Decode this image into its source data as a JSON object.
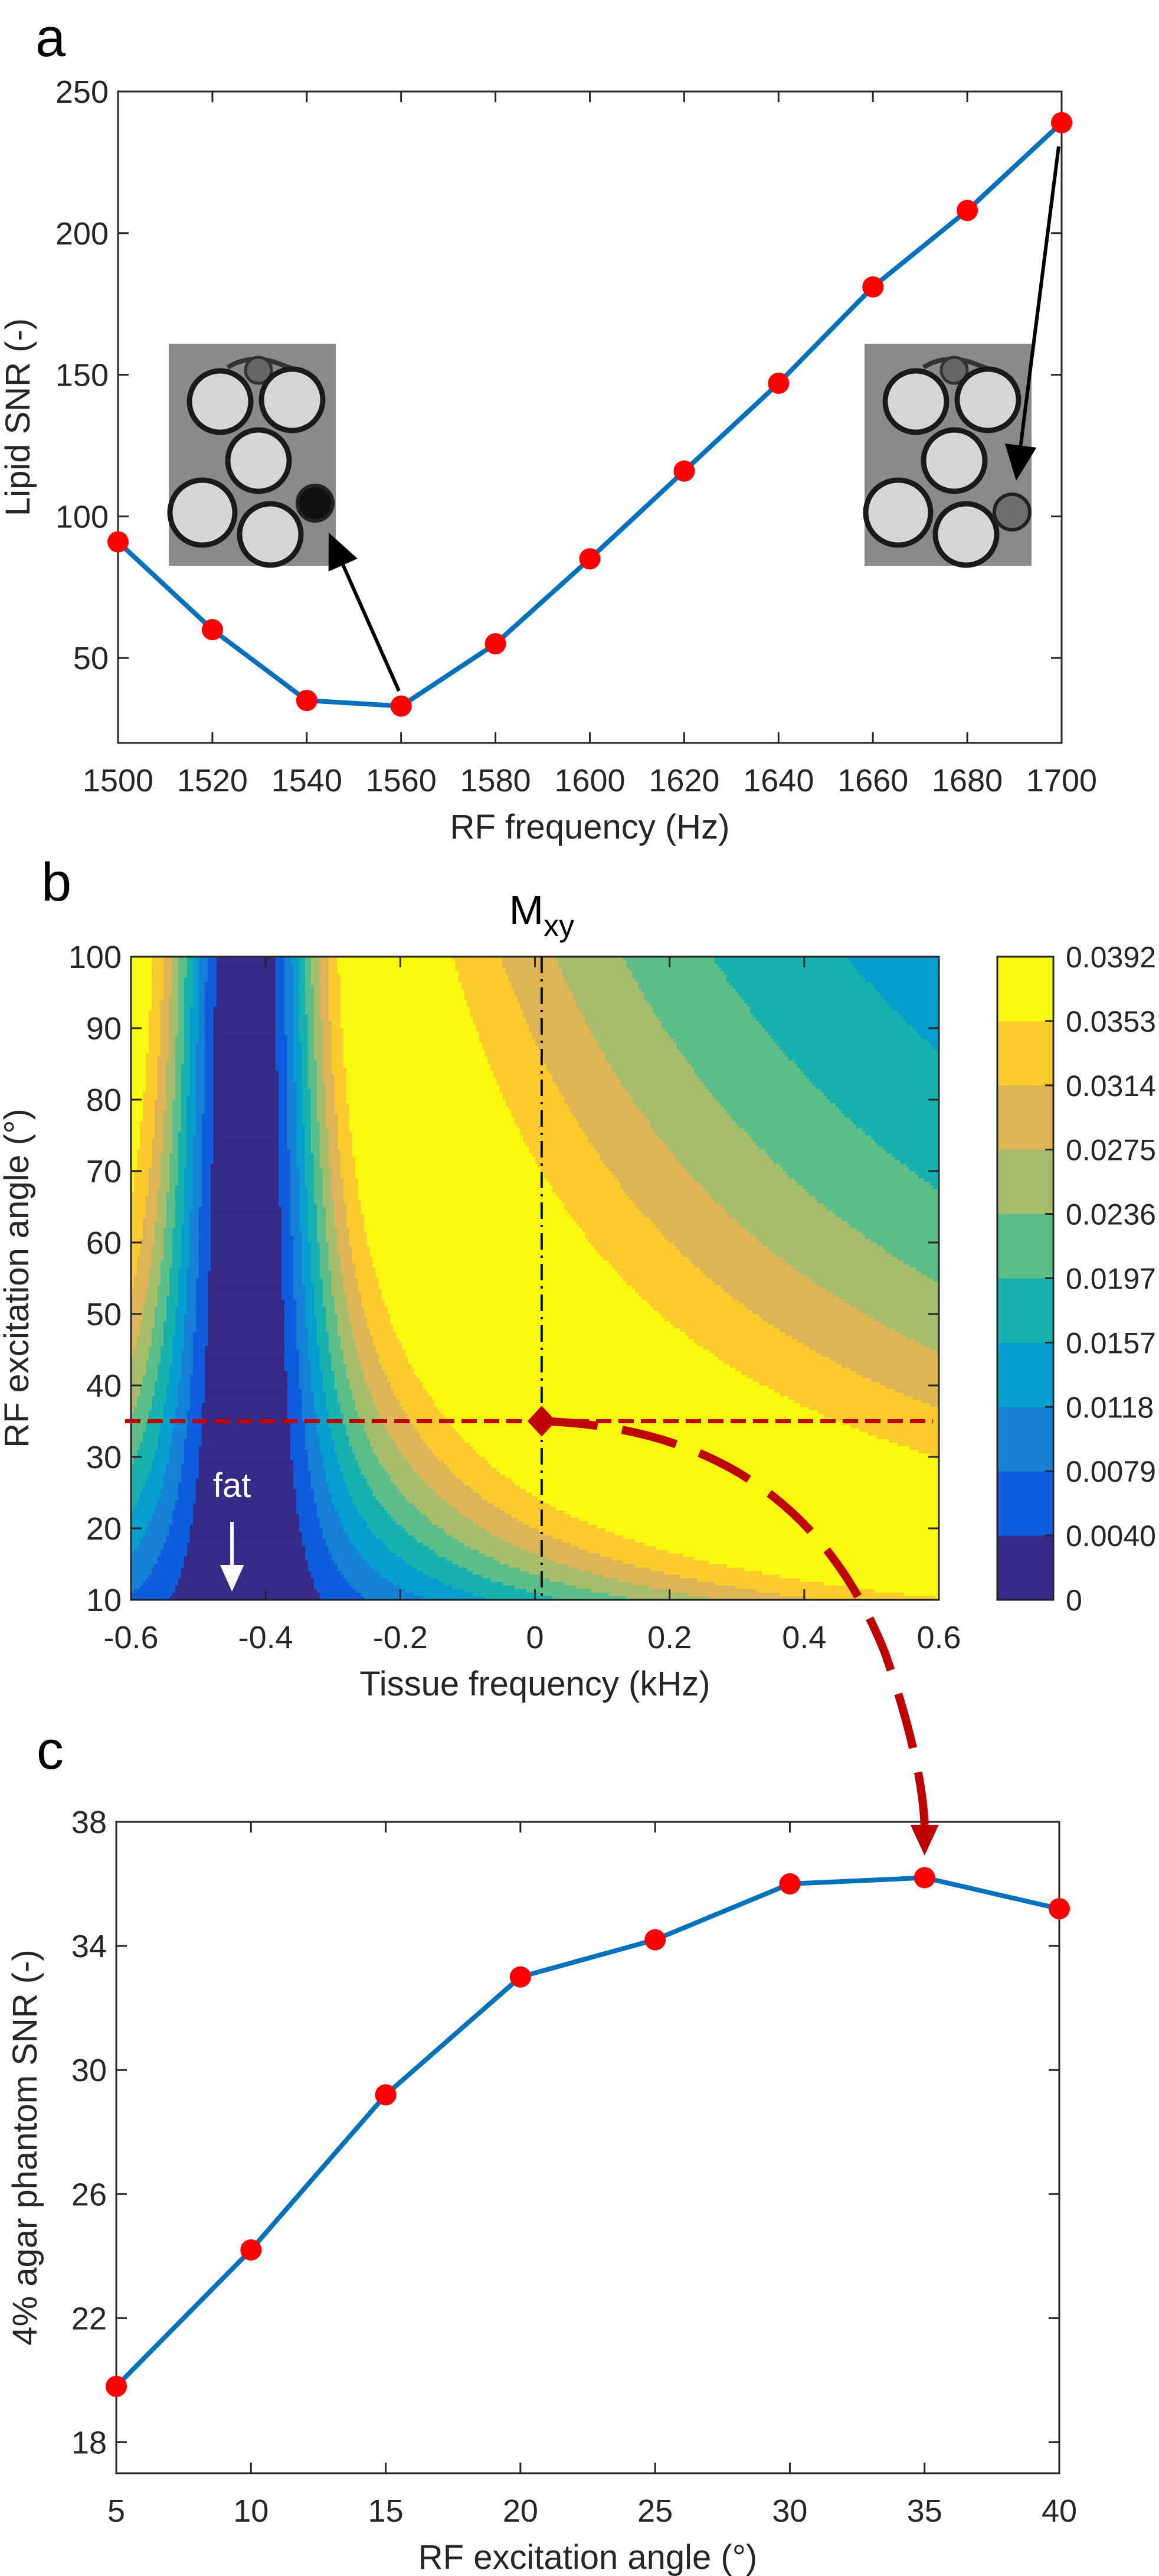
{
  "chart_data": [
    {
      "panel": "a",
      "type": "line",
      "title": "",
      "xlabel": "RF frequency (Hz)",
      "ylabel": "Lipid SNR (-)",
      "x": [
        1500,
        1520,
        1540,
        1560,
        1580,
        1600,
        1620,
        1640,
        1660,
        1680,
        1700
      ],
      "series": [
        {
          "name": "Lipid SNR",
          "values": [
            91,
            60,
            35,
            33,
            55,
            85,
            116,
            147,
            181,
            208,
            239
          ]
        }
      ],
      "xlim": [
        1500,
        1700
      ],
      "ylim": [
        20,
        250
      ],
      "xticks": [
        "1500",
        "1520",
        "1540",
        "1560",
        "1580",
        "1600",
        "1620",
        "1640",
        "1660",
        "1680",
        "1700"
      ],
      "yticks": [
        "50",
        "100",
        "150",
        "200",
        "250"
      ],
      "grid": false,
      "line_color": "#0072bd",
      "marker_color": "#ff0000",
      "annotations": [
        {
          "type": "inset-image",
          "points_to_x": 1560,
          "description_marker": "dark vial"
        },
        {
          "type": "inset-image",
          "points_to_x": 1700,
          "description_marker": "gray vial"
        }
      ]
    },
    {
      "panel": "b",
      "type": "heatmap",
      "title": "Mxy",
      "title_main": "M",
      "title_sub": "xy",
      "xlabel": "Tissue frequency (kHz)",
      "ylabel": "RF excitation angle (°)",
      "xlim": [
        -0.6,
        0.6
      ],
      "ylim": [
        10,
        100
      ],
      "xticks": [
        "-0.6",
        "-0.4",
        "-0.2",
        "0",
        "0.2",
        "0.4",
        "0.6"
      ],
      "yticks": [
        "10",
        "20",
        "30",
        "40",
        "50",
        "60",
        "70",
        "80",
        "90",
        "100"
      ],
      "colorbar_ticks": [
        "0",
        "0.0040",
        "0.0079",
        "0.0118",
        "0.0157",
        "0.0197",
        "0.0236",
        "0.0275",
        "0.0314",
        "0.0353",
        "0.0392"
      ],
      "colorbar_colors": [
        "#352a87",
        "#0f5cdd",
        "#1481d6",
        "#069dcf",
        "#17b1ae",
        "#5bbe89",
        "#a6bd6b",
        "#ddb456",
        "#fbcb2d",
        "#f8f90f"
      ],
      "zlim": [
        0,
        0.0392
      ],
      "fat_frequency_khz": -0.43,
      "fat_label": "fat",
      "selected_point": {
        "x": 0.01,
        "y": 35
      },
      "marker_color": "#c00000"
    },
    {
      "panel": "c",
      "type": "line",
      "title": "",
      "xlabel": "RF excitation angle (°)",
      "ylabel": "4% agar phantom SNR (-)",
      "x": [
        5,
        10,
        15,
        20,
        25,
        30,
        35,
        40
      ],
      "series": [
        {
          "name": "4% agar phantom SNR",
          "values": [
            19.8,
            24.2,
            29.2,
            33.0,
            34.2,
            36.0,
            36.2,
            35.2
          ]
        }
      ],
      "xlim": [
        5,
        40
      ],
      "ylim": [
        17,
        38
      ],
      "xticks": [
        "5",
        "10",
        "15",
        "20",
        "25",
        "30",
        "35",
        "40"
      ],
      "yticks": [
        "18",
        "22",
        "26",
        "30",
        "34",
        "38"
      ],
      "grid": false,
      "line_color": "#0072bd",
      "marker_color": "#ff0000"
    }
  ]
}
